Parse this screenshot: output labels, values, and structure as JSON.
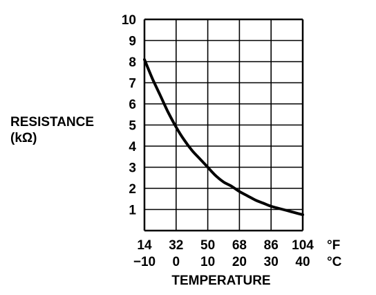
{
  "chart_data": {
    "type": "line",
    "ylabel_line1": "RESISTANCE",
    "ylabel_line2": "(kΩ)",
    "xlabel": "TEMPERATURE",
    "x_unit_f": "°F",
    "x_unit_c": "°C",
    "x_ticks_f": [
      "14",
      "32",
      "50",
      "68",
      "86",
      "104"
    ],
    "x_ticks_c": [
      "−10",
      "0",
      "10",
      "20",
      "30",
      "40"
    ],
    "y_ticks": [
      "1",
      "2",
      "3",
      "4",
      "5",
      "6",
      "7",
      "8",
      "9",
      "10"
    ],
    "xlim_c": [
      -10,
      40
    ],
    "ylim": [
      0,
      10
    ],
    "grid": true,
    "series": [
      {
        "x_c": [
          -10,
          -7.5,
          -5,
          -2.5,
          0,
          2.5,
          5,
          7.5,
          10,
          12.5,
          15,
          17.5,
          20,
          22.5,
          25,
          27.5,
          30,
          32.5,
          35,
          37.5,
          40
        ],
        "values": [
          8.1,
          7.2,
          6.4,
          5.6,
          4.9,
          4.3,
          3.8,
          3.4,
          3.0,
          2.6,
          2.3,
          2.1,
          1.85,
          1.65,
          1.45,
          1.3,
          1.15,
          1.05,
          0.95,
          0.85,
          0.75
        ]
      }
    ]
  }
}
